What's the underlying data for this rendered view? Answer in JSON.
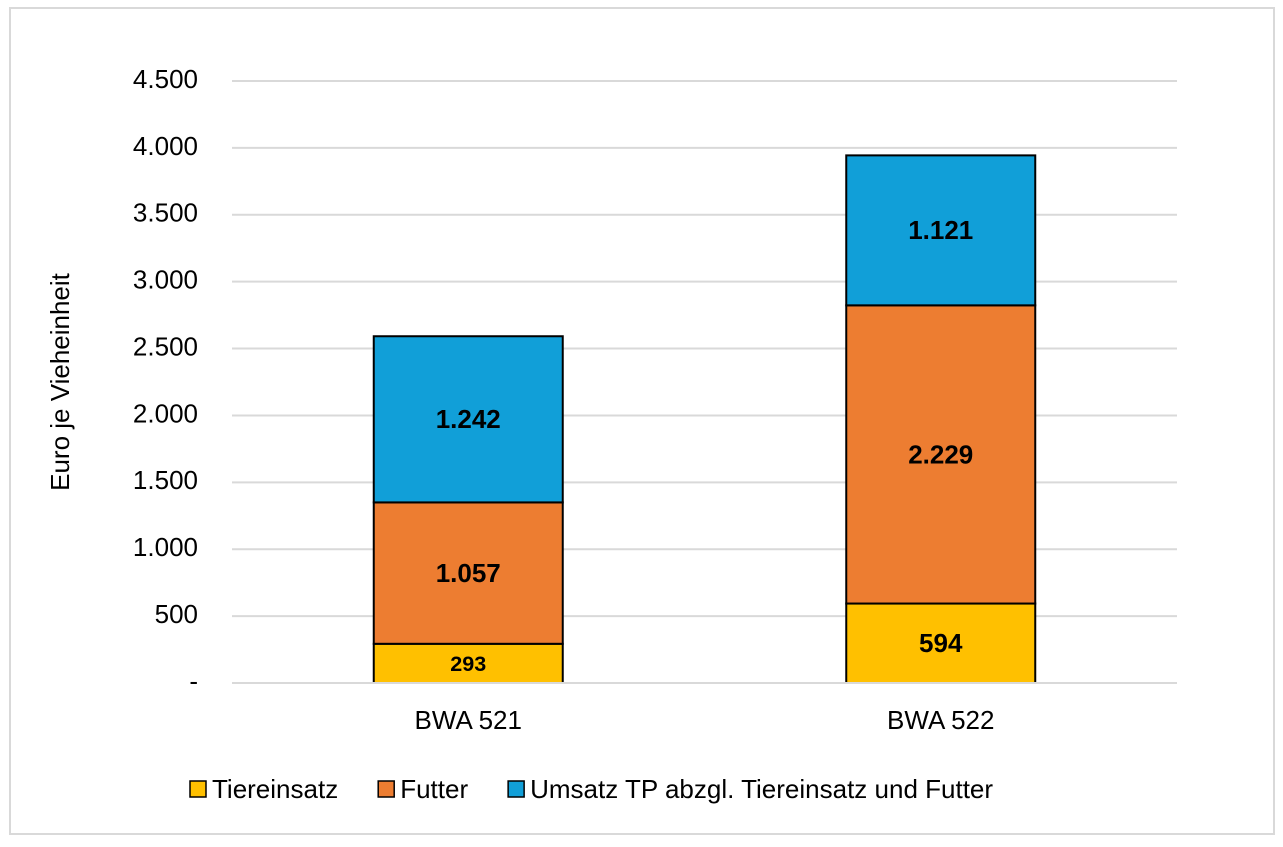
{
  "chart_data": {
    "type": "stacked_bar",
    "y_label": "Euro je Vieheinheit",
    "categories": [
      "BWA 521",
      "BWA 522"
    ],
    "series": [
      {
        "name": "Tiereinsatz",
        "color": "#ffc000",
        "values": [
          293,
          594
        ],
        "value_labels": [
          "293",
          "594"
        ]
      },
      {
        "name": "Futter",
        "color": "#ed7d31",
        "values": [
          1057,
          2229
        ],
        "value_labels": [
          "1.057",
          "2.229"
        ]
      },
      {
        "name": "Umsatz TP abzgl. Tiereinsatz und Futter",
        "color": "#119fd8",
        "values": [
          1242,
          1121
        ],
        "value_labels": [
          "1.242",
          "1.121"
        ]
      }
    ],
    "ylim": [
      0,
      4500
    ],
    "yticks": [
      {
        "value": 0,
        "label": "-"
      },
      500,
      {
        "value": 1000,
        "label": "1.000"
      },
      {
        "value": 1500,
        "label": "1.500"
      },
      {
        "value": 2000,
        "label": "2.000"
      },
      {
        "value": 2500,
        "label": "2.500"
      },
      {
        "value": 3000,
        "label": "3.000"
      },
      {
        "value": 3500,
        "label": "3.500"
      },
      {
        "value": 4000,
        "label": "4.000"
      },
      {
        "value": 4500,
        "label": "4.500"
      }
    ],
    "grid": true,
    "legend": "bottom"
  }
}
